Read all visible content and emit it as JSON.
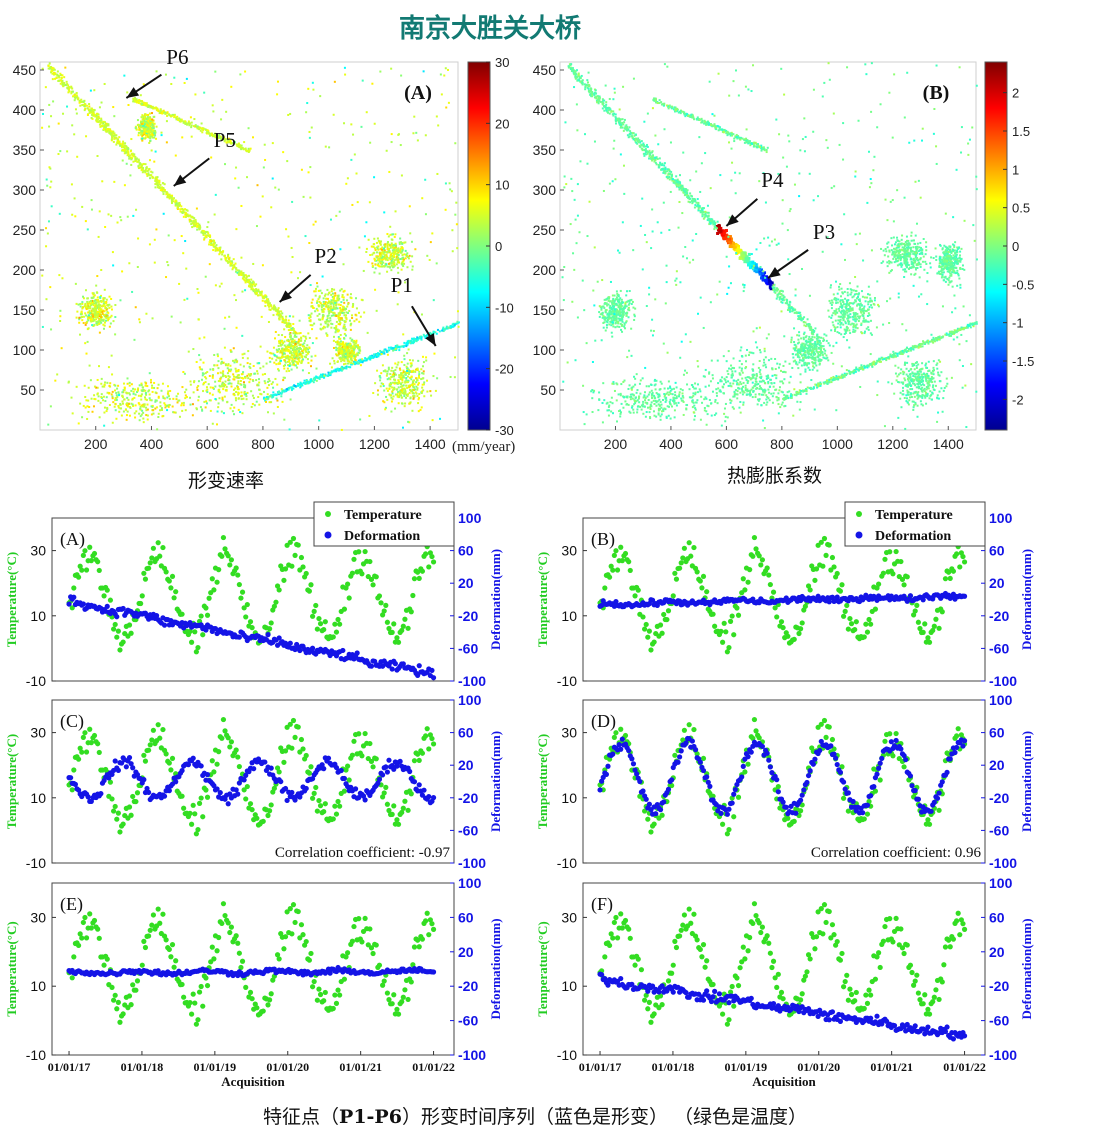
{
  "page": {
    "title": "南京大胜关大桥",
    "map_a_caption": "形变速率",
    "map_b_caption": "热膨胀系数",
    "bottom_caption_parts": [
      "特征点（",
      "P1-P6",
      "）形变时间序列（蓝色是形变）  （绿色是温度）"
    ]
  },
  "colors": {
    "title": "#127a73",
    "temperature": "#33dd22",
    "deformation": "#1414e6",
    "temperature_axis": "#22cc22",
    "deformation_axis": "#1414e6"
  },
  "chart_data": [
    {
      "id": "map_A",
      "type": "heatmap",
      "panel_label": "(A)",
      "caption": "形变速率",
      "xticks": [
        200,
        400,
        600,
        800,
        1000,
        1200,
        1400
      ],
      "yticks": [
        50,
        100,
        150,
        200,
        250,
        300,
        350,
        400,
        450
      ],
      "xlim": [
        0,
        1500
      ],
      "ylim": [
        0,
        460
      ],
      "colormap": "jet",
      "colorbar": {
        "ticks": [
          30,
          20,
          10,
          0,
          -10,
          -20,
          -30
        ],
        "range": [
          -30,
          30
        ],
        "unit": "(mm/year)"
      },
      "annotations": [
        {
          "label": "P6",
          "x": 310,
          "y": 415
        },
        {
          "label": "P5",
          "x": 480,
          "y": 305
        },
        {
          "label": "P2",
          "x": 860,
          "y": 160
        },
        {
          "label": "P1",
          "x": 1420,
          "y": 105
        }
      ]
    },
    {
      "id": "map_B",
      "type": "heatmap",
      "panel_label": "(B)",
      "caption": "热膨胀系数",
      "xticks": [
        200,
        400,
        600,
        800,
        1000,
        1200,
        1400
      ],
      "yticks": [
        50,
        100,
        150,
        200,
        250,
        300,
        350,
        400,
        450
      ],
      "xlim": [
        0,
        1500
      ],
      "ylim": [
        0,
        460
      ],
      "colormap": "jet",
      "colorbar": {
        "ticks": [
          2,
          1.5,
          1,
          0.5,
          0,
          -0.5,
          -1,
          -1.5,
          -2
        ],
        "range": [
          -2.4,
          2.4
        ]
      },
      "annotations": [
        {
          "label": "P4",
          "x": 600,
          "y": 255
        },
        {
          "label": "P3",
          "x": 750,
          "y": 190
        }
      ]
    },
    {
      "id": "ts_A",
      "type": "scatter",
      "panel_label": "(A)",
      "left_ticks": [
        30,
        10,
        -10
      ],
      "right_ticks": [
        100,
        60,
        20,
        -20,
        -60,
        -100
      ],
      "ylabel_left": "Temperature(°C)",
      "ylabel_right": "Deformation(mm)",
      "legend": [
        "Temperature",
        "Deformation"
      ],
      "deformation_model": {
        "kind": "trend",
        "start": -2,
        "end": -92,
        "scatter": 4
      }
    },
    {
      "id": "ts_B",
      "type": "scatter",
      "panel_label": "(B)",
      "left_ticks": [
        30,
        10,
        -10
      ],
      "right_ticks": [
        100,
        60,
        20,
        -20,
        -60,
        -100
      ],
      "ylabel_left": "Temperature(°C)",
      "ylabel_right": "Deformation(mm)",
      "legend": [
        "Temperature",
        "Deformation"
      ],
      "deformation_model": {
        "kind": "trend",
        "start": -6,
        "end": 4,
        "scatter": 2.5
      }
    },
    {
      "id": "ts_C",
      "type": "scatter",
      "panel_label": "(C)",
      "left_ticks": [
        30,
        10,
        -10
      ],
      "right_ticks": [
        100,
        60,
        20,
        -20,
        -60,
        -100
      ],
      "ylabel_left": "Temperature(°C)",
      "ylabel_right": "Deformation(mm)",
      "annotation": "Correlation coefficient: -0.97",
      "deformation_model": {
        "kind": "seasonal",
        "sign": -1,
        "amplitude": 22,
        "offset": 2,
        "scatter": 5
      }
    },
    {
      "id": "ts_D",
      "type": "scatter",
      "panel_label": "(D)",
      "left_ticks": [
        30,
        10,
        -10
      ],
      "right_ticks": [
        100,
        60,
        20,
        -20,
        -60,
        -100
      ],
      "ylabel_left": "Temperature(°C)",
      "ylabel_right": "Deformation(mm)",
      "annotation": "Correlation coefficient: 0.96",
      "deformation_model": {
        "kind": "seasonal",
        "sign": 1,
        "amplitude": 42,
        "offset": 5,
        "scatter": 5
      }
    },
    {
      "id": "ts_E",
      "type": "scatter",
      "panel_label": "(E)",
      "left_ticks": [
        30,
        10,
        -10
      ],
      "right_ticks": [
        100,
        60,
        20,
        -20,
        -60,
        -100
      ],
      "ylabel_left": "Temperature(°C)",
      "ylabel_right": "Deformation(mm)",
      "xticks": [
        "01/01/17",
        "01/01/18",
        "01/01/19",
        "01/01/20",
        "01/01/21",
        "01/01/22"
      ],
      "xlabel": "Acquisition",
      "deformation_model": {
        "kind": "trend",
        "start": -4,
        "end": -3,
        "scatter": 2
      }
    },
    {
      "id": "ts_F",
      "type": "scatter",
      "panel_label": "(F)",
      "left_ticks": [
        30,
        10,
        -10
      ],
      "right_ticks": [
        100,
        60,
        20,
        -20,
        -60,
        -100
      ],
      "ylabel_left": "Temperature(°C)",
      "ylabel_right": "Deformation(mm)",
      "xticks": [
        "01/01/17",
        "01/01/18",
        "01/01/19",
        "01/01/20",
        "01/01/21",
        "01/01/22"
      ],
      "xlabel": "Acquisition",
      "deformation_model": {
        "kind": "trend",
        "start": -12,
        "end": -78,
        "scatter": 4
      }
    }
  ]
}
